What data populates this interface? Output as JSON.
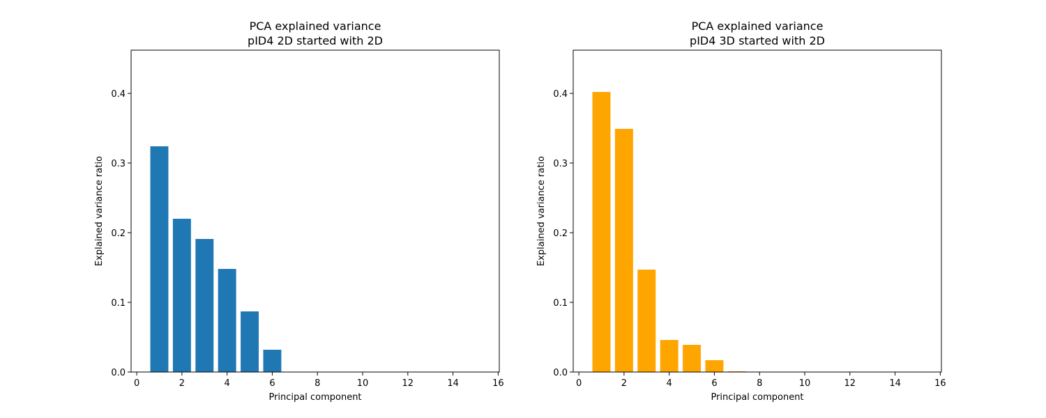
{
  "chart_data": [
    {
      "type": "bar",
      "title": "PCA explained variance\npID4 2D started with 2D",
      "title_lines": [
        "PCA explained variance",
        "pID4 2D started with 2D"
      ],
      "xlabel": "Principal component",
      "ylabel": "Explained variance ratio",
      "xlim": [
        -0.25,
        16.05
      ],
      "ylim": [
        0,
        0.462
      ],
      "xticks": [
        0,
        2,
        4,
        6,
        8,
        10,
        12,
        14,
        16
      ],
      "yticks": [
        0.0,
        0.1,
        0.2,
        0.3,
        0.4
      ],
      "xtick_labels": [
        "0",
        "2",
        "4",
        "6",
        "8",
        "10",
        "12",
        "14",
        "16"
      ],
      "ytick_labels": [
        "0.0",
        "0.1",
        "0.2",
        "0.3",
        "0.4"
      ],
      "grid": false,
      "color": "#1f77b4",
      "x": [
        1,
        2,
        3,
        4,
        5,
        6,
        7,
        8,
        9,
        10,
        11,
        12,
        13,
        14,
        15
      ],
      "values": [
        0.324,
        0.22,
        0.191,
        0.148,
        0.087,
        0.032,
        0,
        0,
        0,
        0,
        0,
        0,
        0,
        0,
        0
      ]
    },
    {
      "type": "bar",
      "title": "PCA explained variance\npID4 3D started with 2D",
      "title_lines": [
        "PCA explained variance",
        "pID4 3D started with 2D"
      ],
      "xlabel": "Principal component",
      "ylabel": "Explained variance ratio",
      "xlim": [
        -0.25,
        16.05
      ],
      "ylim": [
        0,
        0.462
      ],
      "xticks": [
        0,
        2,
        4,
        6,
        8,
        10,
        12,
        14,
        16
      ],
      "yticks": [
        0.0,
        0.1,
        0.2,
        0.3,
        0.4
      ],
      "xtick_labels": [
        "0",
        "2",
        "4",
        "6",
        "8",
        "10",
        "12",
        "14",
        "16"
      ],
      "ytick_labels": [
        "0.0",
        "0.1",
        "0.2",
        "0.3",
        "0.4"
      ],
      "grid": false,
      "color": "#ffa500",
      "x": [
        1,
        2,
        3,
        4,
        5,
        6,
        7,
        8,
        9,
        10,
        11,
        12,
        13,
        14,
        15
      ],
      "values": [
        0.402,
        0.349,
        0.147,
        0.046,
        0.039,
        0.017,
        0.001,
        0,
        0,
        0,
        0,
        0,
        0,
        0,
        0
      ]
    }
  ]
}
